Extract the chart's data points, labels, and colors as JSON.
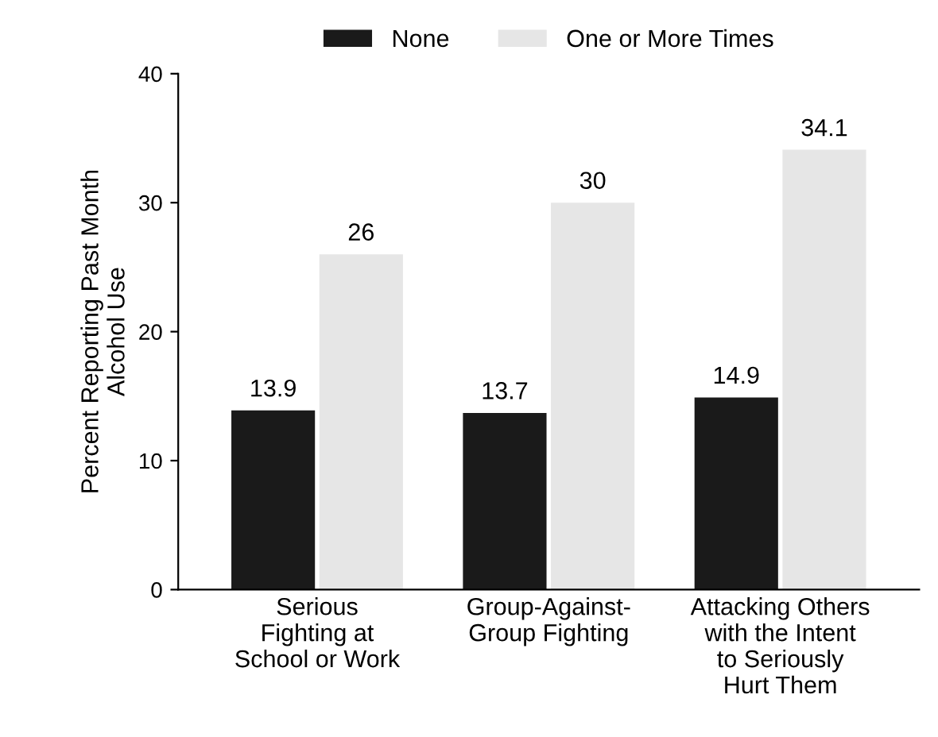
{
  "chart_data": {
    "type": "bar",
    "categories": [
      "Serious\nFighting at\nSchool or Work",
      "Group-Against-\nGroup Fighting",
      "Attacking Others\nwith the Intent\nto Seriously\nHurt Them"
    ],
    "series": [
      {
        "name": "None",
        "color": "#1a1a1a",
        "values": [
          13.9,
          13.7,
          14.9
        ]
      },
      {
        "name": "One or More Times",
        "color": "#e6e6e6",
        "values": [
          26,
          30,
          34.1
        ]
      }
    ],
    "ylabel": "Percent Reporting Past Month\nAlcohol Use",
    "ylim": [
      0,
      40
    ],
    "yticks": [
      0,
      10,
      20,
      30,
      40
    ],
    "data_labels": true,
    "legend": "top",
    "grid": false
  }
}
